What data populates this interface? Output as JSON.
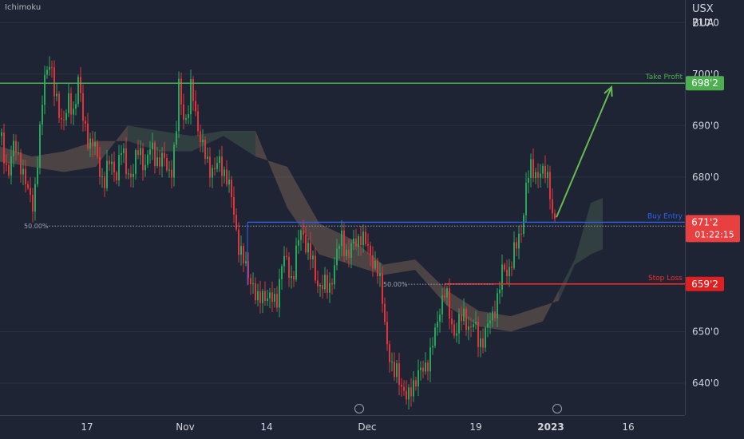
{
  "indicator": "Ichimoku",
  "axis_header": [
    "USX",
    "BUA"
  ],
  "colors": {
    "background": "#1e2433",
    "up_candle": "#26a65b",
    "down_candle": "#e0333a",
    "take_profit": "#4caf50",
    "buy_entry": "#2962ff",
    "stop_loss": "#ff2b2b",
    "arrow": "#66bb55",
    "axis_text": "#d1d4dc"
  },
  "levels": {
    "take_profit": {
      "label": "Take Profit",
      "value": "698'2",
      "y": 698.25
    },
    "buy_entry": {
      "label": "Buy Entry",
      "value": "671'2",
      "y": 671.25,
      "countdown": "01:22:15"
    },
    "stop_loss": {
      "label": "Stop Loss",
      "value": "659'2",
      "y": 659.25
    }
  },
  "fib_labels": [
    {
      "text": "50.00%",
      "y": 670.5
    },
    {
      "text": "50.00%",
      "y": 659.2
    }
  ],
  "chart_data": {
    "type": "candlestick",
    "title": "",
    "ylim": [
      633.8,
      714.4
    ],
    "y_ticks": [
      "710'0",
      "700'0",
      "690'0",
      "680'0",
      "650'0",
      "640'0"
    ],
    "x_ticks": [
      "17",
      "Nov",
      "14",
      "Dec",
      "19",
      "2023",
      "16"
    ],
    "price_path": [
      {
        "x": 0,
        "y": 688
      },
      {
        "x": 4,
        "y": 685
      },
      {
        "x": 10,
        "y": 681
      },
      {
        "x": 18,
        "y": 686
      },
      {
        "x": 26,
        "y": 683
      },
      {
        "x": 34,
        "y": 677
      },
      {
        "x": 42,
        "y": 675
      },
      {
        "x": 50,
        "y": 688
      },
      {
        "x": 56,
        "y": 700
      },
      {
        "x": 62,
        "y": 703
      },
      {
        "x": 68,
        "y": 696
      },
      {
        "x": 74,
        "y": 693
      },
      {
        "x": 80,
        "y": 691
      },
      {
        "x": 86,
        "y": 694
      },
      {
        "x": 92,
        "y": 693
      },
      {
        "x": 98,
        "y": 699
      },
      {
        "x": 104,
        "y": 691
      },
      {
        "x": 112,
        "y": 687
      },
      {
        "x": 118,
        "y": 686
      },
      {
        "x": 124,
        "y": 682
      },
      {
        "x": 130,
        "y": 679
      },
      {
        "x": 138,
        "y": 683
      },
      {
        "x": 146,
        "y": 681
      },
      {
        "x": 152,
        "y": 685
      },
      {
        "x": 158,
        "y": 682
      },
      {
        "x": 166,
        "y": 680
      },
      {
        "x": 174,
        "y": 686
      },
      {
        "x": 182,
        "y": 682
      },
      {
        "x": 190,
        "y": 686
      },
      {
        "x": 198,
        "y": 683
      },
      {
        "x": 206,
        "y": 683
      },
      {
        "x": 214,
        "y": 681
      },
      {
        "x": 220,
        "y": 686
      },
      {
        "x": 224,
        "y": 698
      },
      {
        "x": 228,
        "y": 694
      },
      {
        "x": 234,
        "y": 690
      },
      {
        "x": 240,
        "y": 698
      },
      {
        "x": 246,
        "y": 692
      },
      {
        "x": 252,
        "y": 686
      },
      {
        "x": 260,
        "y": 683
      },
      {
        "x": 268,
        "y": 681
      },
      {
        "x": 276,
        "y": 683
      },
      {
        "x": 284,
        "y": 680
      },
      {
        "x": 292,
        "y": 674
      },
      {
        "x": 300,
        "y": 666
      },
      {
        "x": 308,
        "y": 662
      },
      {
        "x": 316,
        "y": 660
      },
      {
        "x": 322,
        "y": 655
      },
      {
        "x": 330,
        "y": 658
      },
      {
        "x": 338,
        "y": 656
      },
      {
        "x": 346,
        "y": 656
      },
      {
        "x": 354,
        "y": 664
      },
      {
        "x": 360,
        "y": 663
      },
      {
        "x": 366,
        "y": 660
      },
      {
        "x": 372,
        "y": 666
      },
      {
        "x": 378,
        "y": 670
      },
      {
        "x": 384,
        "y": 667
      },
      {
        "x": 390,
        "y": 664
      },
      {
        "x": 396,
        "y": 660
      },
      {
        "x": 404,
        "y": 659
      },
      {
        "x": 412,
        "y": 658
      },
      {
        "x": 420,
        "y": 664
      },
      {
        "x": 428,
        "y": 668
      },
      {
        "x": 436,
        "y": 665
      },
      {
        "x": 444,
        "y": 667
      },
      {
        "x": 452,
        "y": 669
      },
      {
        "x": 460,
        "y": 666
      },
      {
        "x": 468,
        "y": 664
      },
      {
        "x": 474,
        "y": 661
      },
      {
        "x": 480,
        "y": 655
      },
      {
        "x": 486,
        "y": 647
      },
      {
        "x": 492,
        "y": 641
      },
      {
        "x": 498,
        "y": 643
      },
      {
        "x": 504,
        "y": 639
      },
      {
        "x": 510,
        "y": 636
      },
      {
        "x": 516,
        "y": 640
      },
      {
        "x": 522,
        "y": 641
      },
      {
        "x": 528,
        "y": 642
      },
      {
        "x": 534,
        "y": 644
      },
      {
        "x": 540,
        "y": 646
      },
      {
        "x": 546,
        "y": 650
      },
      {
        "x": 552,
        "y": 656
      },
      {
        "x": 558,
        "y": 658
      },
      {
        "x": 564,
        "y": 652
      },
      {
        "x": 570,
        "y": 650
      },
      {
        "x": 576,
        "y": 652
      },
      {
        "x": 582,
        "y": 653
      },
      {
        "x": 588,
        "y": 651
      },
      {
        "x": 594,
        "y": 651
      },
      {
        "x": 600,
        "y": 648
      },
      {
        "x": 606,
        "y": 649
      },
      {
        "x": 612,
        "y": 651
      },
      {
        "x": 618,
        "y": 654
      },
      {
        "x": 624,
        "y": 657
      },
      {
        "x": 630,
        "y": 662
      },
      {
        "x": 636,
        "y": 662
      },
      {
        "x": 642,
        "y": 664
      },
      {
        "x": 648,
        "y": 667
      },
      {
        "x": 654,
        "y": 671
      },
      {
        "x": 660,
        "y": 679
      },
      {
        "x": 666,
        "y": 682
      },
      {
        "x": 672,
        "y": 681
      },
      {
        "x": 678,
        "y": 680
      },
      {
        "x": 684,
        "y": 681
      },
      {
        "x": 688,
        "y": 680
      },
      {
        "x": 692,
        "y": 672
      },
      {
        "x": 697,
        "y": 671
      }
    ],
    "cloud": [
      {
        "x": 0,
        "a": 683,
        "b": 686
      },
      {
        "x": 40,
        "a": 682,
        "b": 684
      },
      {
        "x": 80,
        "a": 681,
        "b": 685
      },
      {
        "x": 120,
        "a": 682,
        "b": 687
      },
      {
        "x": 160,
        "a": 690,
        "b": 687
      },
      {
        "x": 200,
        "a": 689,
        "b": 685
      },
      {
        "x": 240,
        "a": 688,
        "b": 685
      },
      {
        "x": 280,
        "a": 689,
        "b": 688
      },
      {
        "x": 320,
        "a": 689,
        "b": 684
      },
      {
        "x": 360,
        "a": 674,
        "b": 682
      },
      {
        "x": 400,
        "a": 665,
        "b": 671
      },
      {
        "x": 440,
        "a": 663,
        "b": 668
      },
      {
        "x": 480,
        "a": 661,
        "b": 663
      },
      {
        "x": 520,
        "a": 662,
        "b": 664
      },
      {
        "x": 560,
        "a": 655,
        "b": 658
      },
      {
        "x": 600,
        "a": 651,
        "b": 654
      },
      {
        "x": 640,
        "a": 650,
        "b": 653
      },
      {
        "x": 680,
        "a": 652,
        "b": 655
      },
      {
        "x": 700,
        "a": 658,
        "b": 656
      },
      {
        "x": 720,
        "a": 664,
        "b": 663
      },
      {
        "x": 740,
        "a": 675,
        "b": 665
      },
      {
        "x": 755,
        "a": 676,
        "b": 666
      }
    ],
    "arrow": {
      "from": {
        "x": 697,
        "y": 672.2
      },
      "to": {
        "x": 766,
        "y": 697.5
      }
    }
  }
}
